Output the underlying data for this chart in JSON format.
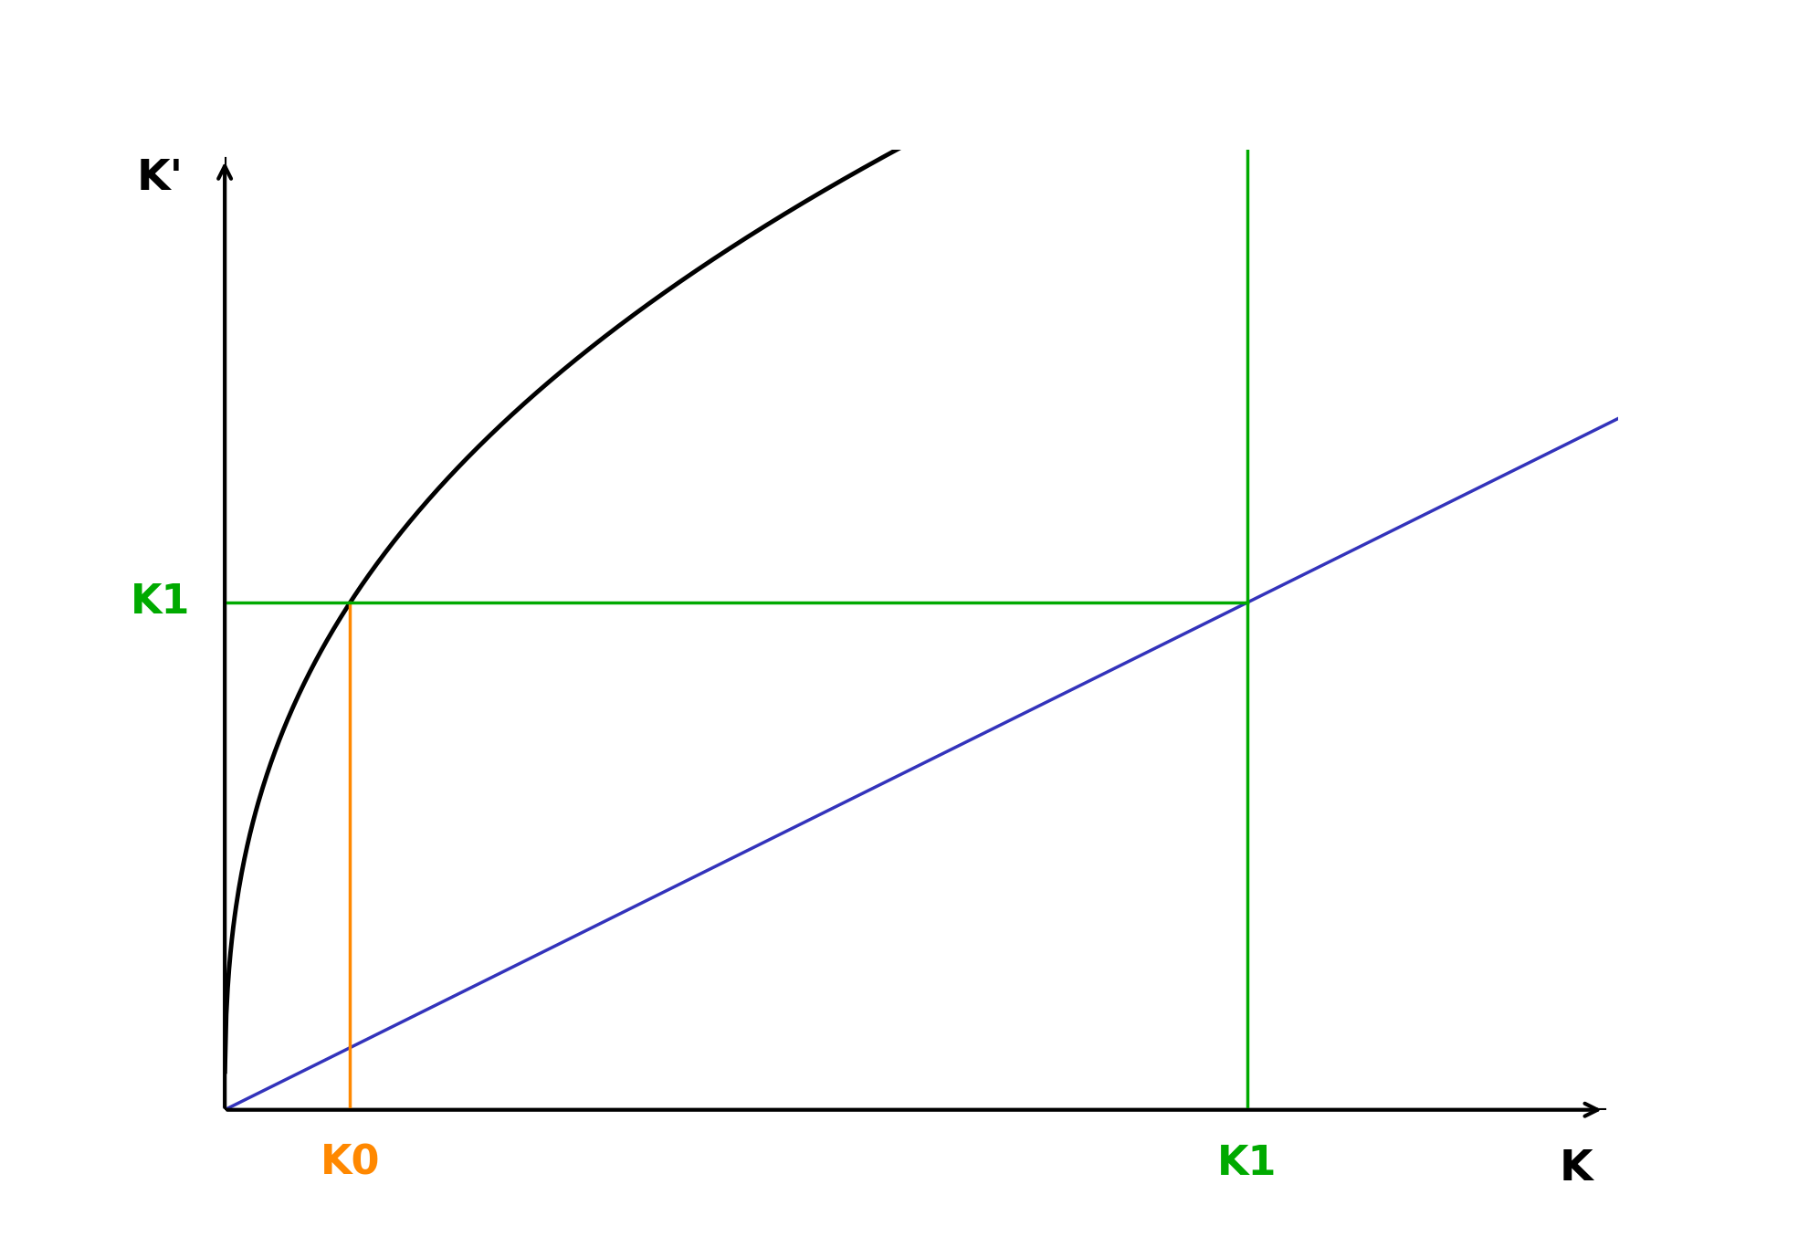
{
  "title": "",
  "xlabel": "K",
  "ylabel": "K'",
  "xlim": [
    0,
    10
  ],
  "ylim": [
    0,
    10
  ],
  "curve_scale": 5.5,
  "curve_power": 0.38,
  "line45_slope": 0.72,
  "K0_x": 0.9,
  "background_color": "#ffffff",
  "axis_color": "#000000",
  "curve_color": "#000000",
  "line45_color": "#3333bb",
  "K0_color": "#ff8800",
  "K1_color": "#00aa00",
  "K2_color": "#00bbdd",
  "K3_color": "#8b0000",
  "curve_lw": 3.5,
  "line45_lw": 2.5,
  "ref_lw": 2.5,
  "label_fontsize": 32,
  "axis_label_fontsize": 34
}
